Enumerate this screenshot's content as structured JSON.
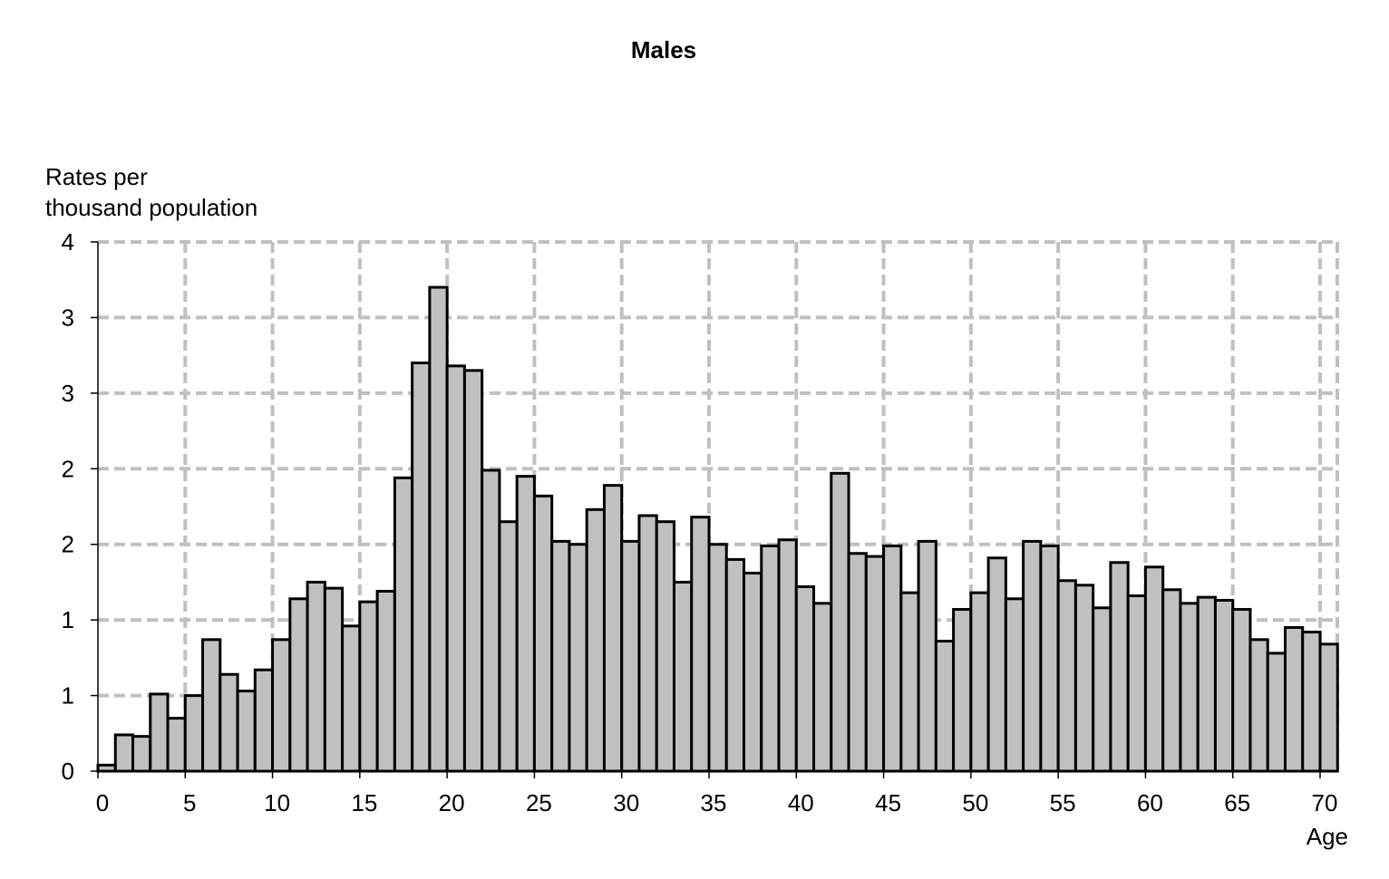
{
  "chart_data": {
    "type": "bar",
    "title": "Males",
    "ylabel_line1": "Rates per",
    "ylabel_line2": "thousand population",
    "xlabel": "Age",
    "ylim": [
      0,
      3.5
    ],
    "xlim": [
      0,
      71
    ],
    "y_ticks": [
      0,
      0.5,
      1,
      1.5,
      2,
      2.5,
      3,
      3.5
    ],
    "y_tick_labels": [
      "0",
      "1",
      "1",
      "2",
      "2",
      "3",
      "3",
      "4"
    ],
    "x_ticks": [
      0,
      5,
      10,
      15,
      20,
      25,
      30,
      35,
      40,
      45,
      50,
      55,
      60,
      65,
      70
    ],
    "x_tick_labels": [
      "0",
      "5",
      "10",
      "15",
      "20",
      "25",
      "30",
      "35",
      "40",
      "45",
      "50",
      "55",
      "60",
      "65",
      "70"
    ],
    "grid": true,
    "bar_color": "#c0c0c0",
    "edge_color": "#000000",
    "grid_color": "#c0c0c0",
    "categories": [
      0,
      1,
      2,
      3,
      4,
      5,
      6,
      7,
      8,
      9,
      10,
      11,
      12,
      13,
      14,
      15,
      16,
      17,
      18,
      19,
      20,
      21,
      22,
      23,
      24,
      25,
      26,
      27,
      28,
      29,
      30,
      31,
      32,
      33,
      34,
      35,
      36,
      37,
      38,
      39,
      40,
      41,
      42,
      43,
      44,
      45,
      46,
      47,
      48,
      49,
      50,
      51,
      52,
      53,
      54,
      55,
      56,
      57,
      58,
      59,
      60,
      61,
      62,
      63,
      64,
      65,
      66,
      67,
      68,
      69,
      70
    ],
    "values": [
      0.04,
      0.24,
      0.23,
      0.51,
      0.35,
      0.5,
      0.87,
      0.64,
      0.53,
      0.67,
      0.87,
      1.14,
      1.25,
      1.21,
      0.96,
      1.12,
      1.19,
      1.94,
      2.7,
      3.2,
      2.68,
      2.65,
      1.99,
      1.65,
      1.95,
      1.82,
      1.52,
      1.5,
      1.73,
      1.89,
      1.52,
      1.69,
      1.65,
      1.25,
      1.68,
      1.5,
      1.4,
      1.31,
      1.49,
      1.53,
      1.22,
      1.11,
      1.97,
      1.44,
      1.42,
      1.49,
      1.18,
      1.52,
      0.86,
      1.07,
      1.18,
      1.41,
      1.14,
      1.52,
      1.49,
      1.26,
      1.23,
      1.08,
      1.38,
      1.16,
      1.35,
      1.2,
      1.11,
      1.15,
      1.13,
      1.07,
      0.87,
      0.78,
      0.95,
      0.92,
      0.84
    ]
  }
}
